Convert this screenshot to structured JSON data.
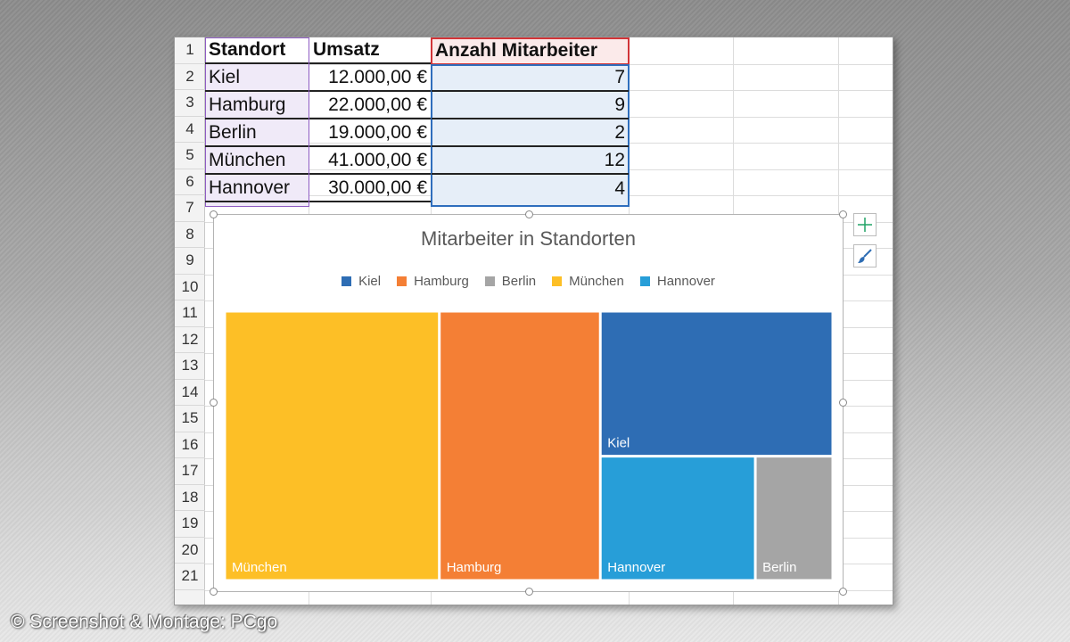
{
  "spreadsheet": {
    "row_numbers": [
      "1",
      "2",
      "3",
      "4",
      "5",
      "6",
      "7",
      "8",
      "9",
      "10",
      "11",
      "12",
      "13",
      "14",
      "15",
      "16",
      "17",
      "18",
      "19",
      "20",
      "21"
    ],
    "headers": {
      "standort": "Standort",
      "umsatz": "Umsatz",
      "mitarbeiter": "Anzahl Mitarbeiter"
    },
    "rows": [
      {
        "standort": "Kiel",
        "umsatz": "12.000,00 €",
        "mitarbeiter": "7"
      },
      {
        "standort": "Hamburg",
        "umsatz": "22.000,00 €",
        "mitarbeiter": "9"
      },
      {
        "standort": "Berlin",
        "umsatz": "19.000,00 €",
        "mitarbeiter": "2"
      },
      {
        "standort": "München",
        "umsatz": "41.000,00 €",
        "mitarbeiter": "12"
      },
      {
        "standort": "Hannover",
        "umsatz": "30.000,00 €",
        "mitarbeiter": "4"
      }
    ]
  },
  "chart_data": {
    "type": "treemap",
    "title": "Mitarbeiter in Standorten",
    "legend_position": "top",
    "categories": [
      "Kiel",
      "Hamburg",
      "Berlin",
      "München",
      "Hannover"
    ],
    "values": [
      7,
      9,
      2,
      12,
      4
    ],
    "colors": {
      "Kiel": "#2e6db4",
      "Hamburg": "#f47f35",
      "Berlin": "#a5a5a5",
      "München": "#fdbf26",
      "Hannover": "#279ed8"
    }
  },
  "side_buttons": {
    "add_icon": "plus-icon",
    "style_icon": "brush-icon"
  },
  "credit": "© Screenshot & Montage: PCgo"
}
